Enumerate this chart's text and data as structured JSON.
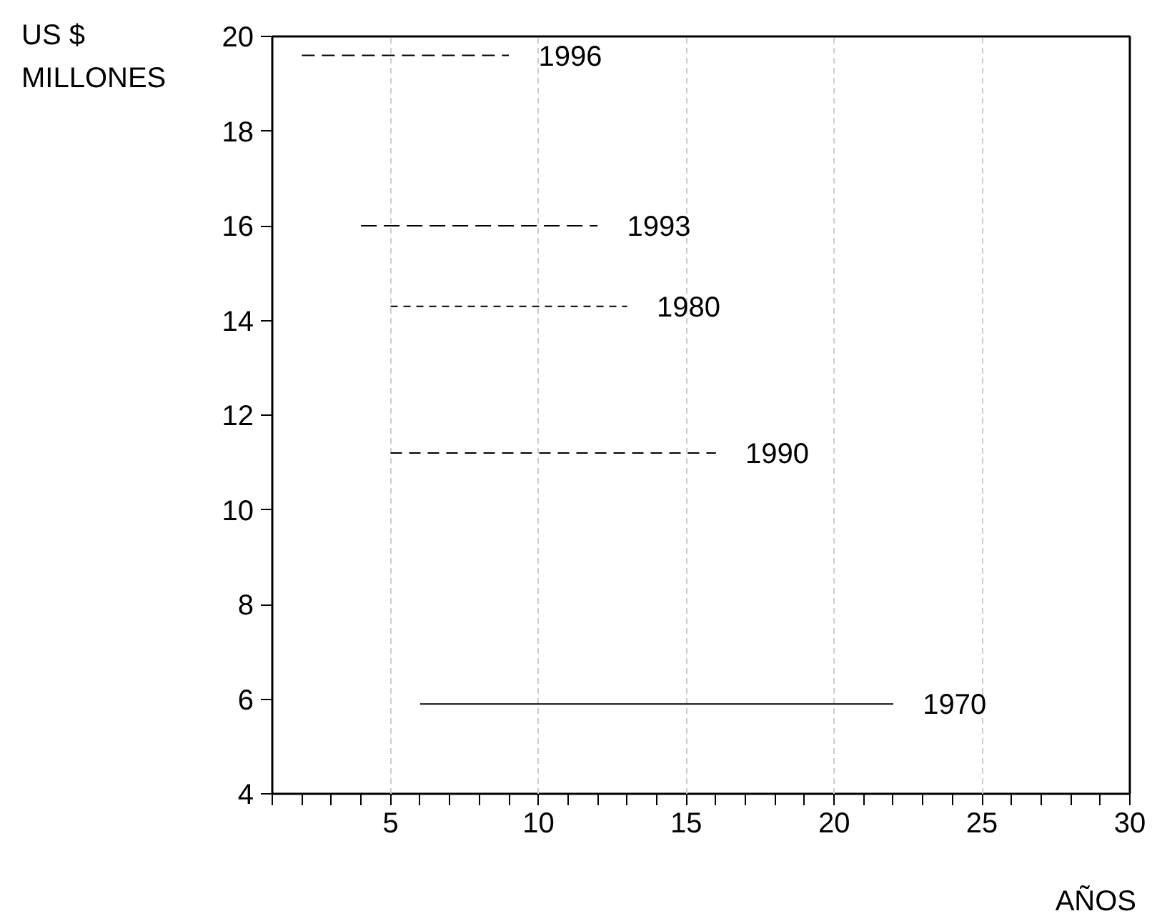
{
  "chart_data": {
    "type": "line",
    "ylabel": "US $\nMILLONES",
    "xlabel": "AÑOS",
    "xlim": [
      1,
      30
    ],
    "ylim": [
      4,
      20
    ],
    "xticks": [
      {
        "value": 1,
        "label": null
      },
      {
        "value": 2,
        "label": null
      },
      {
        "value": 3,
        "label": null
      },
      {
        "value": 4,
        "label": null
      },
      5,
      {
        "value": 6,
        "label": null
      },
      {
        "value": 7,
        "label": null
      },
      {
        "value": 8,
        "label": null
      },
      {
        "value": 9,
        "label": null
      },
      10,
      {
        "value": 11,
        "label": null
      },
      {
        "value": 12,
        "label": null
      },
      {
        "value": 13,
        "label": null
      },
      {
        "value": 14,
        "label": null
      },
      15,
      {
        "value": 16,
        "label": null
      },
      {
        "value": 17,
        "label": null
      },
      {
        "value": 18,
        "label": null
      },
      {
        "value": 19,
        "label": null
      },
      20,
      {
        "value": 21,
        "label": null
      },
      {
        "value": 22,
        "label": null
      },
      {
        "value": 23,
        "label": null
      },
      {
        "value": 24,
        "label": null
      },
      25,
      {
        "value": 26,
        "label": null
      },
      {
        "value": 27,
        "label": null
      },
      {
        "value": 28,
        "label": null
      },
      {
        "value": 29,
        "label": null
      },
      30
    ],
    "yticks": [
      4,
      6,
      8,
      10,
      12,
      14,
      16,
      18,
      20
    ],
    "grid": "x",
    "marker": "none",
    "series": [
      {
        "name": "1996",
        "color": "#000000",
        "line_style": "dashed",
        "x": [
          2,
          9
        ],
        "values": [
          19.6,
          19.6
        ]
      },
      {
        "name": "1993",
        "color": "#000000",
        "line_style": "dashed",
        "x": [
          4,
          12
        ],
        "values": [
          16.0,
          16.0
        ]
      },
      {
        "name": "1980",
        "color": "#000000",
        "line_style": "dotted",
        "x": [
          5,
          13
        ],
        "values": [
          14.3,
          14.3
        ]
      },
      {
        "name": "1990",
        "color": "#000000",
        "line_style": "dashed",
        "x": [
          5,
          16
        ],
        "values": [
          11.2,
          11.2
        ]
      },
      {
        "name": "1970",
        "color": "#000000",
        "line_style": "solid",
        "x": [
          6,
          22
        ],
        "values": [
          5.9,
          5.9
        ]
      }
    ]
  }
}
